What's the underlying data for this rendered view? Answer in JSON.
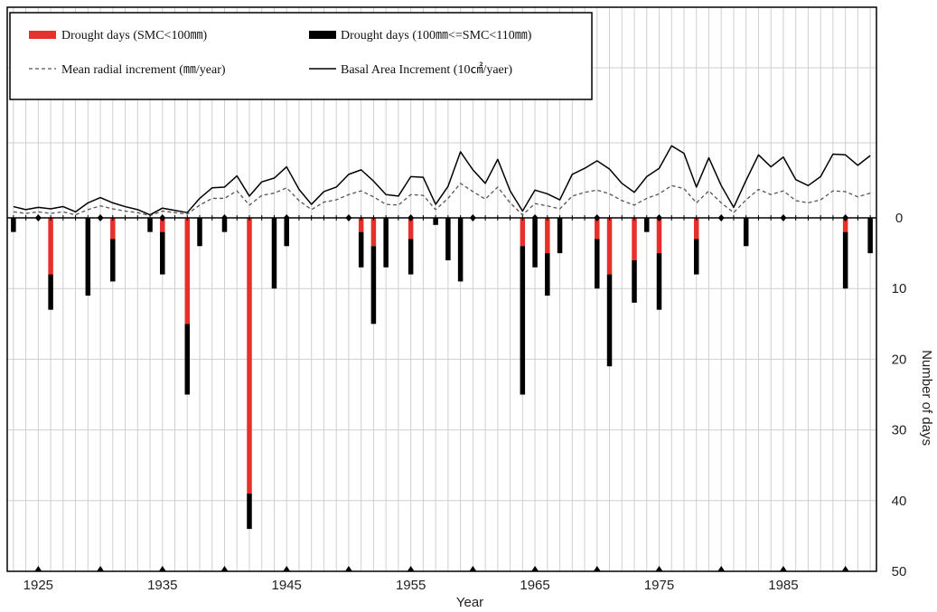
{
  "chart_data": {
    "type": "bar",
    "xlabel": "Year",
    "ylabel": "Number of days",
    "ylim": [
      0,
      50
    ],
    "yticks": [
      0,
      10,
      20,
      30,
      40,
      50
    ],
    "xlim": [
      1923,
      1992
    ],
    "xticks": [
      1925,
      1935,
      1945,
      1955,
      1965,
      1975,
      1985
    ],
    "grid": true,
    "legend_position": "top-left",
    "marker_years": [
      1925,
      1930,
      1935,
      1940,
      1945,
      1950,
      1955,
      1960,
      1965,
      1970,
      1975,
      1980,
      1985,
      1990
    ],
    "legend": {
      "red_bar": "Drought days (SMC<100㎜)",
      "black_bar": "Drought days (100㎜<=SMC<110㎜)",
      "dashed": "Mean radial increment (㎜/year)",
      "solid": "Basal Area Increment (10㎠/yaer)"
    },
    "series": [
      {
        "name": "Drought days (SMC<100㎜)",
        "color": "#e8302a",
        "years": [
          1926,
          1931,
          1935,
          1937,
          1942,
          1951,
          1952,
          1955,
          1964,
          1966,
          1970,
          1971,
          1973,
          1975,
          1978,
          1990
        ],
        "values": [
          8,
          3,
          2,
          15,
          39,
          2,
          4,
          3,
          4,
          5,
          3,
          8,
          6,
          5,
          3,
          2
        ]
      },
      {
        "name": "Drought days (100㎜<=SMC<110㎜)",
        "color": "#000000",
        "years": [
          1923,
          1926,
          1929,
          1931,
          1934,
          1935,
          1937,
          1938,
          1940,
          1942,
          1944,
          1945,
          1951,
          1952,
          1953,
          1955,
          1957,
          1958,
          1959,
          1964,
          1965,
          1966,
          1967,
          1970,
          1971,
          1973,
          1974,
          1975,
          1978,
          1982,
          1990,
          1992
        ],
        "values": [
          2,
          5,
          11,
          6,
          2,
          6,
          10,
          4,
          2,
          5,
          10,
          4,
          5,
          11,
          7,
          5,
          1,
          6,
          9,
          21,
          7,
          6,
          5,
          7,
          13,
          6,
          2,
          8,
          5,
          4,
          8,
          5
        ]
      },
      {
        "name": "Basal Area Increment (10㎠/yaer)",
        "style": "solid",
        "years": [
          1923,
          1924,
          1925,
          1926,
          1927,
          1928,
          1929,
          1930,
          1931,
          1932,
          1933,
          1934,
          1935,
          1936,
          1937,
          1938,
          1939,
          1940,
          1941,
          1942,
          1943,
          1944,
          1945,
          1946,
          1947,
          1948,
          1949,
          1950,
          1951,
          1952,
          1953,
          1954,
          1955,
          1956,
          1957,
          1958,
          1959,
          1960,
          1961,
          1962,
          1963,
          1964,
          1965,
          1966,
          1967,
          1968,
          1969,
          1970,
          1971,
          1972,
          1973,
          1974,
          1975,
          1976,
          1977,
          1978,
          1979,
          1980,
          1981,
          1982,
          1983,
          1984,
          1985,
          1986,
          1987,
          1988,
          1989,
          1990,
          1991,
          1992
        ],
        "values": [
          1.5,
          1.1,
          1.4,
          1.2,
          1.5,
          0.8,
          2.0,
          2.7,
          2.0,
          1.5,
          1.1,
          0.4,
          1.3,
          1.0,
          0.7,
          2.6,
          4.0,
          4.1,
          5.6,
          2.9,
          4.8,
          5.3,
          6.8,
          3.8,
          1.8,
          3.5,
          4.1,
          5.8,
          6.4,
          4.9,
          3.1,
          2.9,
          5.5,
          5.4,
          1.8,
          4.2,
          8.8,
          6.4,
          4.6,
          7.8,
          3.6,
          0.9,
          3.7,
          3.2,
          2.4,
          5.8,
          6.6,
          7.6,
          6.5,
          4.6,
          3.4,
          5.5,
          6.6,
          9.6,
          8.6,
          4.1,
          8.0,
          4.3,
          1.4,
          5.0,
          8.4,
          6.8,
          8.1,
          5.1,
          4.3,
          5.5,
          8.5,
          8.4,
          7.0,
          8.3
        ]
      },
      {
        "name": "Mean radial increment (㎜/year)",
        "style": "dashed",
        "years": [
          1923,
          1924,
          1925,
          1926,
          1927,
          1928,
          1929,
          1930,
          1931,
          1932,
          1933,
          1934,
          1935,
          1936,
          1937,
          1938,
          1939,
          1940,
          1941,
          1942,
          1943,
          1944,
          1945,
          1946,
          1947,
          1948,
          1949,
          1950,
          1951,
          1952,
          1953,
          1954,
          1955,
          1956,
          1957,
          1958,
          1959,
          1960,
          1961,
          1962,
          1963,
          1964,
          1965,
          1966,
          1967,
          1968,
          1969,
          1970,
          1971,
          1972,
          1973,
          1974,
          1975,
          1976,
          1977,
          1978,
          1979,
          1980,
          1981,
          1982,
          1983,
          1984,
          1985,
          1986,
          1987,
          1988,
          1989,
          1990,
          1991,
          1992
        ],
        "values": [
          0.8,
          0.6,
          0.8,
          0.6,
          0.8,
          0.4,
          1.1,
          1.6,
          1.2,
          0.9,
          0.7,
          0.3,
          0.9,
          0.7,
          0.5,
          1.7,
          2.6,
          2.6,
          3.6,
          1.7,
          3.0,
          3.3,
          4.0,
          2.3,
          1.1,
          2.1,
          2.4,
          3.1,
          3.6,
          2.8,
          1.8,
          1.7,
          3.1,
          3.0,
          1.1,
          2.6,
          4.6,
          3.5,
          2.5,
          4.1,
          2.0,
          0.4,
          1.9,
          1.6,
          1.2,
          2.9,
          3.4,
          3.7,
          3.2,
          2.3,
          1.7,
          2.6,
          3.2,
          4.3,
          3.9,
          2.0,
          3.6,
          2.0,
          0.7,
          2.4,
          3.8,
          3.1,
          3.6,
          2.3,
          2.0,
          2.4,
          3.6,
          3.5,
          2.8,
          3.3
        ]
      }
    ]
  }
}
